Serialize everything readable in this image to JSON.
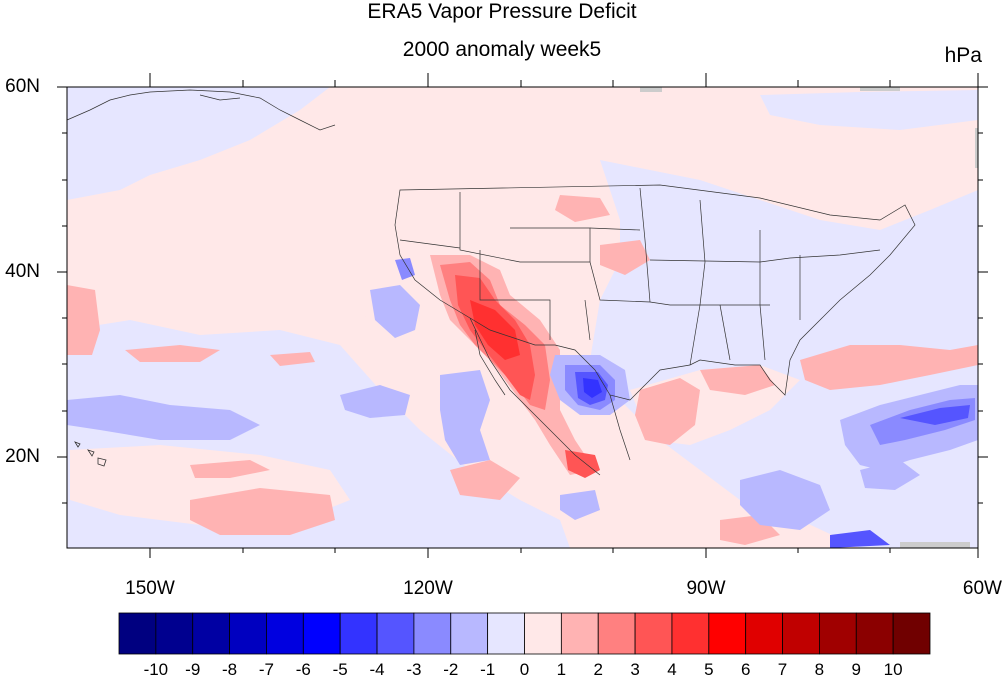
{
  "title": "ERA5 Vapor Pressure Deficit",
  "subtitle": "2000 anomaly week5",
  "units": "hPa",
  "lat_labels": [
    "60N",
    "40N",
    "20N"
  ],
  "lon_labels": [
    "150W",
    "120W",
    "90W",
    "60W"
  ],
  "colorbar": {
    "labels": [
      "-10",
      "-9",
      "-8",
      "-7",
      "-6",
      "-5",
      "-4",
      "-3",
      "-2",
      "-1",
      "0",
      "1",
      "2",
      "3",
      "4",
      "5",
      "6",
      "7",
      "8",
      "9",
      "10"
    ],
    "colors": [
      "#000080",
      "#00008f",
      "#0000a3",
      "#0000c0",
      "#0000e0",
      "#0000ff",
      "#3333ff",
      "#5555ff",
      "#8a8aff",
      "#b8b8ff",
      "#e6e6ff",
      "#ffe8e8",
      "#ffb3b3",
      "#ff8080",
      "#ff5555",
      "#ff3030",
      "#ff0000",
      "#e00000",
      "#c00000",
      "#a00000",
      "#8b0000",
      "#700000"
    ]
  },
  "map": {
    "lat_range": [
      "10N",
      "60N"
    ],
    "lon_range": [
      "160W",
      "60W"
    ],
    "field": "VPD anomaly",
    "colors": {
      "neutral_pos": "#ffe8e8",
      "neutral_neg": "#e6e6ff",
      "pos1": "#ffb3b3",
      "pos2": "#ff8080",
      "pos3": "#ff5555",
      "pos4": "#ff3030",
      "neg1": "#b8b8ff",
      "neg2": "#8a8aff",
      "neg3": "#5555ff",
      "neg4": "#3333ff",
      "border": "#222222"
    }
  }
}
